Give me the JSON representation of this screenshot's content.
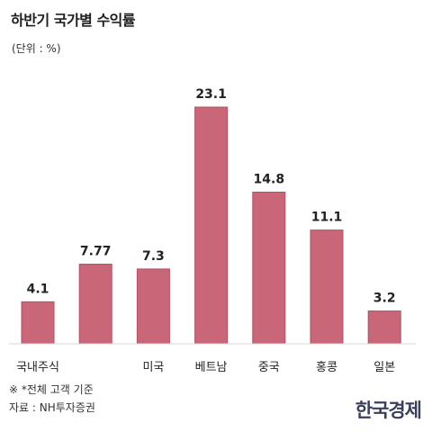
{
  "title": "하반기 국가별 수익률",
  "unit": "(단위 : %)",
  "footnote": "※ *전체 고객 기준",
  "source": "자료 : NH투자증권",
  "brand": "한국경제",
  "colors": {
    "bar": "#c96677",
    "bar_stroke": "#b5505f",
    "baseline": "#d8d8d8"
  },
  "chart_data": {
    "type": "bar",
    "categories": [
      "국내주식",
      "",
      "미국",
      "베트남",
      "중국",
      "홍콩",
      "일본"
    ],
    "values": [
      4.1,
      7.77,
      7.3,
      23.1,
      14.8,
      11.1,
      3.2
    ],
    "value_labels": [
      "4.1",
      "7.77",
      "7.3",
      "23.1",
      "14.8",
      "11.1",
      "3.2"
    ],
    "ylim": [
      0,
      23.1
    ],
    "grid": false,
    "legend": "none"
  }
}
